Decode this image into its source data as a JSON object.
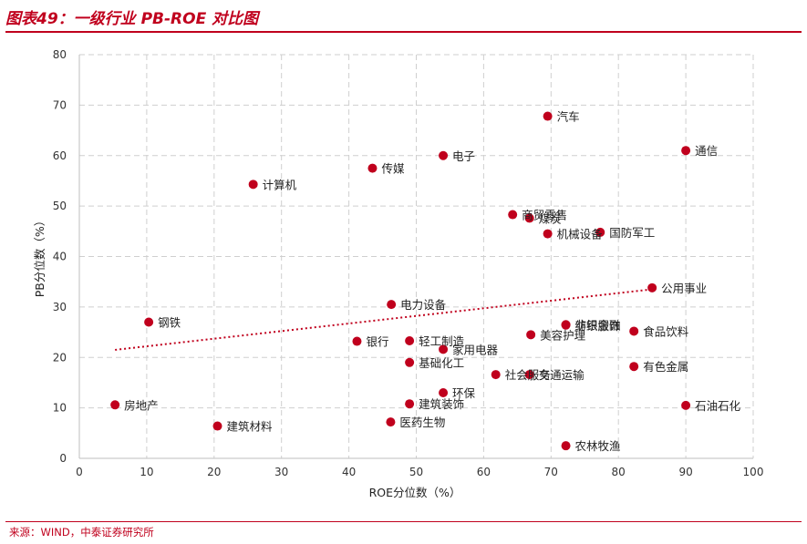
{
  "header": {
    "title": "图表49：一级行业 PB-ROE 对比图"
  },
  "footer": {
    "source": "来源：WIND，中泰证券研究所"
  },
  "chart_data": {
    "type": "scatter",
    "title": "",
    "xlabel": "ROE分位数（%）",
    "ylabel": "PB分位数（%）",
    "xlim": [
      0,
      100
    ],
    "ylim": [
      0,
      80
    ],
    "xticks": [
      0,
      10,
      20,
      30,
      40,
      50,
      60,
      70,
      80,
      90,
      100
    ],
    "yticks": [
      0,
      10,
      20,
      30,
      40,
      50,
      60,
      70,
      80
    ],
    "grid": true,
    "point_color": "#c0001d",
    "trendline": {
      "style": "dotted",
      "color": "#c0001d",
      "x": [
        5.3,
        85
      ],
      "y": [
        21.5,
        33.5
      ]
    },
    "points": [
      {
        "name": "汽车",
        "x": 69.5,
        "y": 67.8
      },
      {
        "name": "通信",
        "x": 90,
        "y": 61
      },
      {
        "name": "电子",
        "x": 54,
        "y": 60
      },
      {
        "name": "传媒",
        "x": 43.5,
        "y": 57.5
      },
      {
        "name": "计算机",
        "x": 25.8,
        "y": 54.3
      },
      {
        "name": "商贸零售",
        "x": 64.3,
        "y": 48.3
      },
      {
        "name": "煤炭",
        "x": 66.8,
        "y": 47.6
      },
      {
        "name": "机械设备",
        "x": 69.5,
        "y": 44.5
      },
      {
        "name": "国防军工",
        "x": 77.3,
        "y": 44.8
      },
      {
        "name": "公用事业",
        "x": 85,
        "y": 33.8
      },
      {
        "name": "钢铁",
        "x": 10.3,
        "y": 27
      },
      {
        "name": "电力设备",
        "x": 46.3,
        "y": 30.5
      },
      {
        "name": "非银金融",
        "x": 72.2,
        "y": 26.5
      },
      {
        "name": "纺织服饰",
        "x": 72.2,
        "y": 26.4
      },
      {
        "name": "食品饮料",
        "x": 82.3,
        "y": 25.2
      },
      {
        "name": "美容护理",
        "x": 67,
        "y": 24.5
      },
      {
        "name": "银行",
        "x": 41.2,
        "y": 23.2
      },
      {
        "name": "轻工制造",
        "x": 49,
        "y": 23.3
      },
      {
        "name": "家用电器",
        "x": 54,
        "y": 21.6
      },
      {
        "name": "基础化工",
        "x": 49,
        "y": 19
      },
      {
        "name": "有色金属",
        "x": 82.3,
        "y": 18.2
      },
      {
        "name": "社会服务",
        "x": 61.8,
        "y": 16.6
      },
      {
        "name": "交通运输",
        "x": 66.8,
        "y": 16.6
      },
      {
        "name": "环保",
        "x": 54,
        "y": 13
      },
      {
        "name": "建筑装饰",
        "x": 49,
        "y": 10.8
      },
      {
        "name": "房地产",
        "x": 5.3,
        "y": 10.6
      },
      {
        "name": "石油石化",
        "x": 90,
        "y": 10.5
      },
      {
        "name": "医药生物",
        "x": 46.2,
        "y": 7.2
      },
      {
        "name": "建筑材料",
        "x": 20.5,
        "y": 6.4
      },
      {
        "name": "农林牧渔",
        "x": 72.2,
        "y": 2.5
      }
    ]
  }
}
